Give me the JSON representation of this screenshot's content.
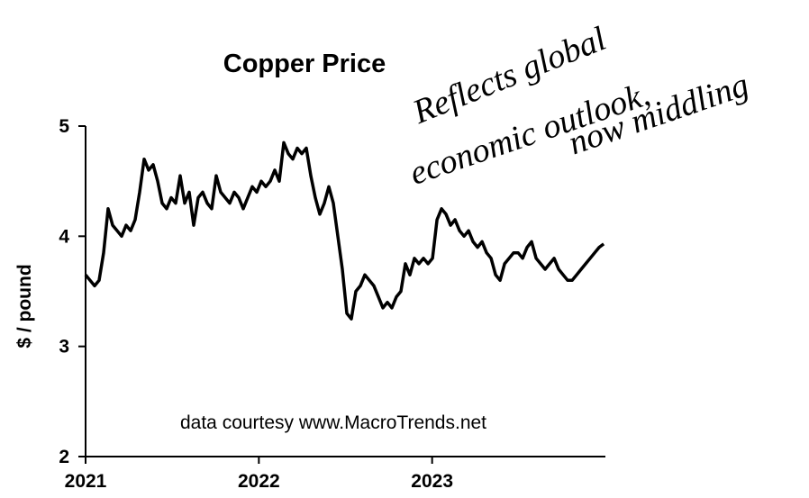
{
  "chart_data": {
    "type": "line",
    "title": "Copper Price",
    "ylabel": "$ / pound",
    "note": "data courtesy www.MacroTrends.net",
    "annotations": [
      "Reflects global",
      "economic outlook,",
      "now middling"
    ],
    "xlim": [
      2021,
      2024
    ],
    "xticks": [
      2021,
      2022,
      2023
    ],
    "ylim": [
      2,
      5
    ],
    "yticks": [
      2,
      3,
      4,
      5
    ],
    "grid": false,
    "series": [
      {
        "name": "Copper",
        "color": "#000000",
        "x": [
          2021,
          2021.026,
          2021.052,
          2021.078,
          2021.104,
          2021.13,
          2021.156,
          2021.182,
          2021.208,
          2021.234,
          2021.26,
          2021.286,
          2021.312,
          2021.338,
          2021.364,
          2021.39,
          2021.416,
          2021.442,
          2021.468,
          2021.494,
          2021.52,
          2021.546,
          2021.572,
          2021.598,
          2021.624,
          2021.65,
          2021.676,
          2021.702,
          2021.728,
          2021.754,
          2021.78,
          2021.806,
          2021.832,
          2021.858,
          2021.884,
          2021.91,
          2021.936,
          2021.962,
          2021.988,
          2022.014,
          2022.04,
          2022.066,
          2022.092,
          2022.118,
          2022.144,
          2022.17,
          2022.196,
          2022.222,
          2022.248,
          2022.274,
          2022.3,
          2022.326,
          2022.352,
          2022.378,
          2022.404,
          2022.43,
          2022.456,
          2022.482,
          2022.508,
          2022.534,
          2022.56,
          2022.586,
          2022.612,
          2022.638,
          2022.664,
          2022.69,
          2022.716,
          2022.742,
          2022.768,
          2022.794,
          2022.82,
          2022.846,
          2022.872,
          2022.898,
          2022.924,
          2022.95,
          2022.976,
          2023.002,
          2023.028,
          2023.054,
          2023.08,
          2023.106,
          2023.132,
          2023.158,
          2023.184,
          2023.21,
          2023.236,
          2023.262,
          2023.288,
          2023.314,
          2023.34,
          2023.366,
          2023.392,
          2023.418,
          2023.444,
          2023.47,
          2023.496,
          2023.522,
          2023.548,
          2023.574,
          2023.6,
          2023.626,
          2023.652,
          2023.678,
          2023.704,
          2023.73,
          2023.756,
          2023.782,
          2023.808,
          2023.834,
          2023.86,
          2023.886,
          2023.912,
          2023.938,
          2023.964,
          2023.99
        ],
        "values": [
          3.65,
          3.6,
          3.55,
          3.6,
          3.85,
          4.25,
          4.1,
          4.05,
          4.0,
          4.1,
          4.05,
          4.15,
          4.4,
          4.7,
          4.6,
          4.65,
          4.5,
          4.3,
          4.25,
          4.35,
          4.3,
          4.55,
          4.3,
          4.4,
          4.1,
          4.35,
          4.4,
          4.3,
          4.25,
          4.55,
          4.4,
          4.35,
          4.3,
          4.4,
          4.35,
          4.25,
          4.35,
          4.45,
          4.4,
          4.5,
          4.45,
          4.5,
          4.6,
          4.5,
          4.85,
          4.75,
          4.7,
          4.8,
          4.75,
          4.8,
          4.55,
          4.35,
          4.2,
          4.3,
          4.45,
          4.3,
          4.0,
          3.7,
          3.3,
          3.25,
          3.5,
          3.55,
          3.65,
          3.6,
          3.55,
          3.45,
          3.35,
          3.4,
          3.35,
          3.45,
          3.5,
          3.75,
          3.65,
          3.8,
          3.75,
          3.8,
          3.75,
          3.8,
          4.15,
          4.25,
          4.2,
          4.1,
          4.15,
          4.05,
          4.0,
          4.05,
          3.95,
          3.9,
          3.95,
          3.85,
          3.8,
          3.65,
          3.6,
          3.75,
          3.8,
          3.85,
          3.85,
          3.8,
          3.9,
          3.95,
          3.8,
          3.75,
          3.7,
          3.75,
          3.8,
          3.7,
          3.65,
          3.6,
          3.6,
          3.65,
          3.7,
          3.75,
          3.8,
          3.85,
          3.9,
          3.93
        ]
      }
    ]
  }
}
